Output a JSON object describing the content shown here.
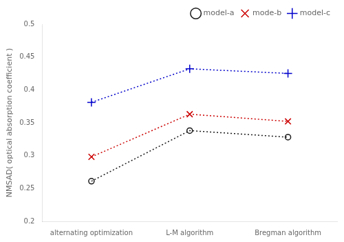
{
  "chart_data": {
    "type": "line",
    "categories": [
      "alternating optimization",
      "L-M algorithm",
      "Bregman algorithm"
    ],
    "series": [
      {
        "name": "model-a",
        "color": "#1a1a1a",
        "marker": "o",
        "line_style": "dotted",
        "values": [
          0.261,
          0.338,
          0.328
        ]
      },
      {
        "name": "mode-b",
        "color": "#cc0000",
        "marker": "x",
        "line_style": "dotted",
        "values": [
          0.298,
          0.363,
          0.352
        ]
      },
      {
        "name": "model-c",
        "color": "#0000cc",
        "marker": "+",
        "line_style": "dotted",
        "values": [
          0.381,
          0.432,
          0.425
        ]
      }
    ],
    "ylabel": "NMSAD( optical absorption coefficient )",
    "ylim": [
      0.2,
      0.5
    ],
    "yticks": [
      0.2,
      0.25,
      0.3,
      0.35,
      0.4,
      0.45,
      0.5
    ],
    "grid": false,
    "legend": "upper right"
  }
}
